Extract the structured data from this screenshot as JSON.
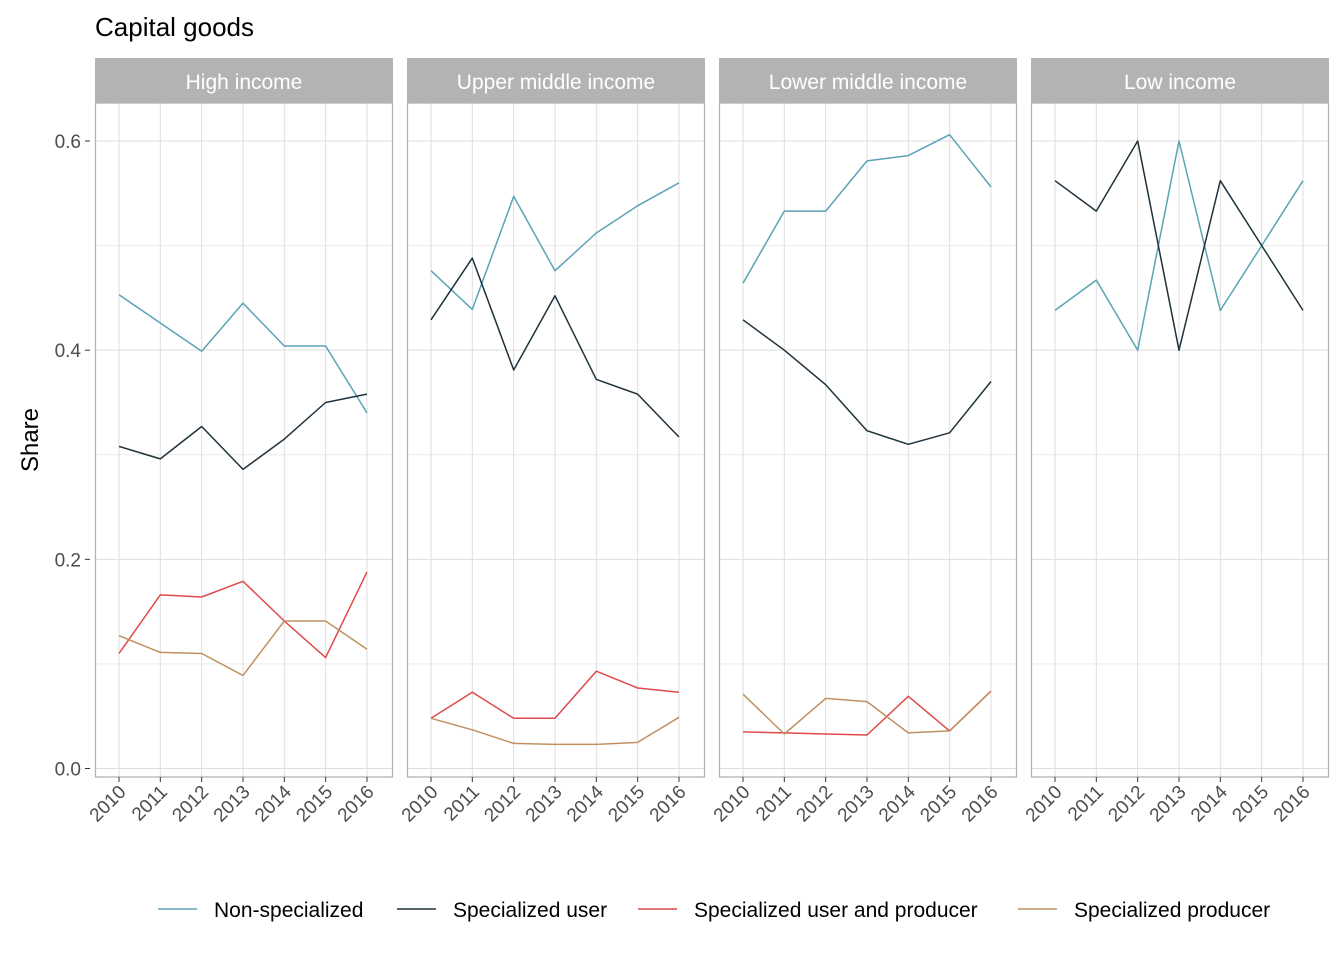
{
  "chart_data": {
    "type": "line",
    "title": "Capital goods",
    "ylabel": "Share",
    "xlabel": "",
    "ylim": [
      0,
      0.6
    ],
    "y_ticks": [
      0.0,
      0.2,
      0.4,
      0.6
    ],
    "y_tick_labels": [
      "0.0",
      "0.2",
      "0.4",
      "0.6"
    ],
    "x": [
      "2010",
      "2011",
      "2012",
      "2013",
      "2014",
      "2015",
      "2016"
    ],
    "grid": true,
    "legend_position": "bottom",
    "colors": {
      "Non-specialized": "#5ba3b5",
      "Specialized user": "#1f323c",
      "Specialized user and producer": "#de4a4a",
      "Specialized producer": "#c09060"
    },
    "legend": [
      "Non-specialized",
      "Specialized user",
      "Specialized user and producer",
      "Specialized producer"
    ],
    "panels": [
      {
        "name": "High income",
        "series": [
          {
            "name": "Non-specialized",
            "values": [
              0.453,
              0.426,
              0.399,
              0.445,
              0.404,
              0.404,
              0.34
            ]
          },
          {
            "name": "Specialized user",
            "values": [
              0.308,
              0.296,
              0.327,
              0.286,
              0.315,
              0.35,
              0.358
            ]
          },
          {
            "name": "Specialized user and producer",
            "values": [
              0.11,
              0.166,
              0.164,
              0.179,
              0.141,
              0.106,
              0.188
            ]
          },
          {
            "name": "Specialized producer",
            "values": [
              0.127,
              0.111,
              0.11,
              0.089,
              0.141,
              0.141,
              0.114
            ]
          }
        ]
      },
      {
        "name": "Upper middle income",
        "series": [
          {
            "name": "Non-specialized",
            "values": [
              0.476,
              0.439,
              0.547,
              0.476,
              0.512,
              0.538,
              0.56
            ]
          },
          {
            "name": "Specialized user",
            "values": [
              0.429,
              0.488,
              0.381,
              0.452,
              0.372,
              0.358,
              0.317
            ]
          },
          {
            "name": "Specialized user and producer",
            "values": [
              0.048,
              0.073,
              0.048,
              0.048,
              0.093,
              0.077,
              0.073
            ]
          },
          {
            "name": "Specialized producer",
            "values": [
              0.048,
              0.037,
              0.024,
              0.023,
              0.023,
              0.025,
              0.049
            ]
          }
        ]
      },
      {
        "name": "Lower middle income",
        "series": [
          {
            "name": "Non-specialized",
            "values": [
              0.464,
              0.533,
              0.533,
              0.581,
              0.586,
              0.606,
              0.556
            ]
          },
          {
            "name": "Specialized user",
            "values": [
              0.429,
              0.4,
              0.367,
              0.323,
              0.31,
              0.321,
              0.37
            ]
          },
          {
            "name": "Specialized user and producer",
            "values": [
              0.035,
              0.034,
              0.033,
              0.032,
              0.069,
              0.036,
              0.074
            ]
          },
          {
            "name": "Specialized producer",
            "values": [
              0.071,
              0.033,
              0.067,
              0.064,
              0.034,
              0.036,
              0.074
            ]
          }
        ]
      },
      {
        "name": "Low income",
        "series": [
          {
            "name": "Non-specialized",
            "values": [
              0.438,
              0.467,
              0.4,
              0.6,
              0.438,
              0.5,
              0.562
            ]
          },
          {
            "name": "Specialized user",
            "values": [
              0.562,
              0.533,
              0.6,
              0.4,
              0.562,
              0.5,
              0.438
            ]
          }
        ]
      }
    ]
  }
}
